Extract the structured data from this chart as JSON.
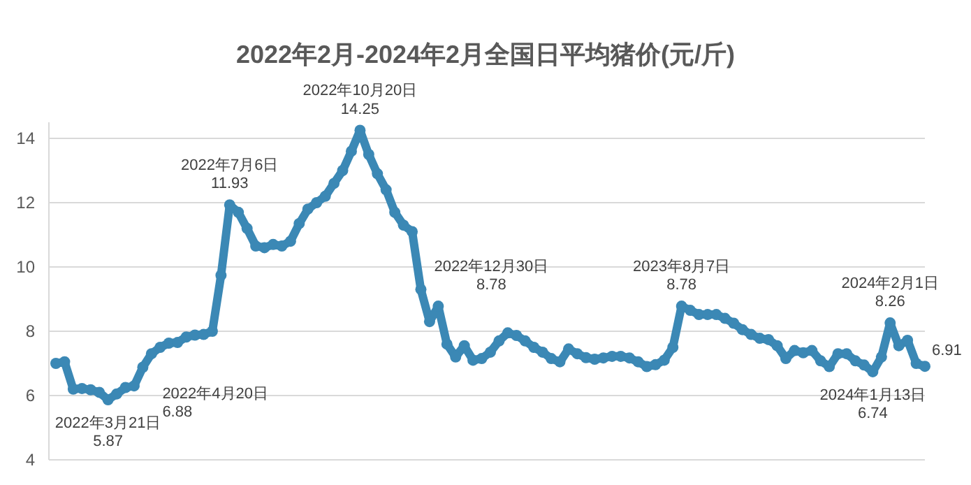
{
  "chart_data": {
    "type": "line",
    "title": "2022年2月-2024年2月全国日平均猪价(元/斤)",
    "marker": "circle",
    "grid": "y",
    "tick_labels": "y",
    "ylim": [
      4,
      14.5
    ],
    "yticks": [
      4,
      6,
      8,
      10,
      12,
      14
    ],
    "categories": [
      null,
      null,
      null,
      null,
      null,
      null,
      null,
      null,
      null,
      null,
      null,
      null,
      null,
      null,
      null,
      null,
      null,
      null,
      null,
      null,
      null,
      null,
      null,
      null,
      null,
      null,
      null,
      null,
      null,
      null,
      null,
      null,
      null,
      null,
      null,
      null,
      null,
      null,
      null,
      null,
      null,
      null,
      null,
      null,
      null,
      null,
      null,
      null,
      null,
      null,
      null,
      null,
      null,
      null,
      null,
      null,
      null,
      null,
      null,
      null,
      null,
      null,
      null,
      null,
      null,
      null,
      null,
      null,
      null,
      null,
      null,
      null,
      null,
      null,
      null,
      null,
      null,
      null,
      null,
      null,
      null,
      null,
      null,
      null,
      null,
      null,
      null,
      null,
      null,
      null,
      null,
      null,
      null,
      null,
      null,
      null,
      null,
      null,
      null,
      null,
      null
    ],
    "series": [
      {
        "color": "#3b88b5",
        "values": [
          7.0,
          7.05,
          6.2,
          6.22,
          6.18,
          6.1,
          5.87,
          6.05,
          6.25,
          6.3,
          6.88,
          7.3,
          7.5,
          7.63,
          7.65,
          7.82,
          7.88,
          7.9,
          8.0,
          9.74,
          11.93,
          11.7,
          11.2,
          10.65,
          10.6,
          10.7,
          10.65,
          10.8,
          11.35,
          11.8,
          12.0,
          12.2,
          12.6,
          13.0,
          13.6,
          14.25,
          13.5,
          12.9,
          12.4,
          11.7,
          11.3,
          11.1,
          9.3,
          8.3,
          8.78,
          7.6,
          7.2,
          7.55,
          7.1,
          7.15,
          7.35,
          7.7,
          7.95,
          7.87,
          7.7,
          7.5,
          7.35,
          7.15,
          7.05,
          7.45,
          7.3,
          7.18,
          7.13,
          7.17,
          7.22,
          7.22,
          7.17,
          7.05,
          6.9,
          6.96,
          7.1,
          7.5,
          8.78,
          8.65,
          8.52,
          8.52,
          8.52,
          8.4,
          8.25,
          8.05,
          7.9,
          7.78,
          7.74,
          7.55,
          7.15,
          7.4,
          7.33,
          7.4,
          7.08,
          6.9,
          7.3,
          7.3,
          7.08,
          6.95,
          6.74,
          7.2,
          8.26,
          7.55,
          7.72,
          7.0,
          6.91
        ],
        "value_labels": [
          null,
          null,
          null,
          null,
          null,
          null,
          "2022年3月21日\n5.87",
          null,
          null,
          null,
          "2022年4月20日\n6.88",
          null,
          null,
          null,
          null,
          null,
          null,
          null,
          null,
          null,
          "2022年7月6日\n11.93",
          null,
          null,
          null,
          null,
          null,
          null,
          null,
          null,
          null,
          null,
          null,
          null,
          null,
          null,
          "2022年10月20日\n14.25",
          null,
          null,
          null,
          null,
          null,
          null,
          null,
          null,
          "2022年12月30日\n8.78",
          null,
          null,
          null,
          null,
          null,
          null,
          null,
          null,
          null,
          null,
          null,
          null,
          null,
          null,
          null,
          null,
          null,
          null,
          null,
          null,
          null,
          null,
          null,
          null,
          null,
          null,
          null,
          "2023年8月7日\n8.78",
          null,
          null,
          null,
          null,
          null,
          null,
          null,
          null,
          null,
          null,
          null,
          null,
          null,
          null,
          null,
          null,
          null,
          null,
          null,
          null,
          null,
          "2024年1月13日\n6.74",
          null,
          "2024年2月1日\n8.26",
          null,
          null,
          null,
          "6.91"
        ]
      }
    ]
  }
}
